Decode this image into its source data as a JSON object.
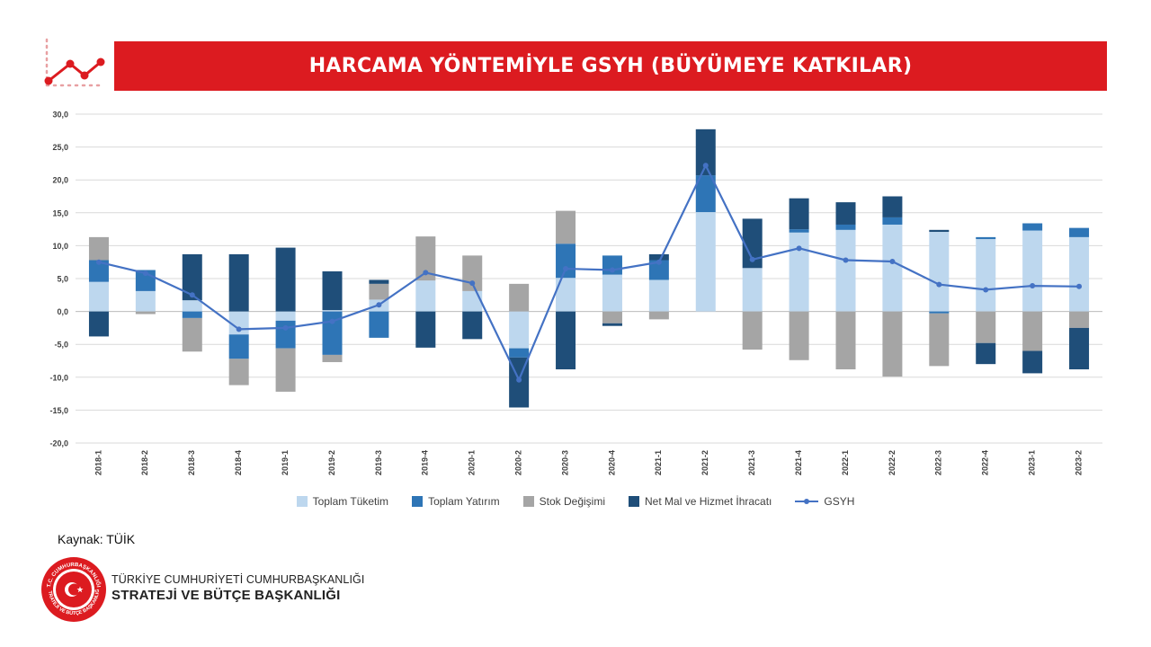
{
  "header": {
    "title": "HARCAMA YÖNTEMİYLE GSYH (BÜYÜMEYE KATKILAR)"
  },
  "colors": {
    "accent_red": "#dc1b20",
    "toplam_tuketim": "#bdd7ee",
    "toplam_yatirim": "#2e75b6",
    "stok_degisimi": "#a5a5a5",
    "net_ihracat": "#1f4e79",
    "gsyh": "#4472c4"
  },
  "chart_data": {
    "type": "bar",
    "stacked": true,
    "title": "",
    "xlabel": "",
    "ylabel": "",
    "ylim": [
      -20,
      30
    ],
    "ytick_step": 5,
    "ytick_labels": [
      "30,0",
      "25,0",
      "20,0",
      "15,0",
      "10,0",
      "5,0",
      "0,0",
      "-5,0",
      "-10,0",
      "-15,0",
      "-20,0"
    ],
    "grid": true,
    "legend_position": "bottom",
    "categories": [
      "2018-1",
      "2018-2",
      "2018-3",
      "2018-4",
      "2019-1",
      "2019-2",
      "2019-3",
      "2019-4",
      "2020-1",
      "2020-2",
      "2020-3",
      "2020-4",
      "2021-1",
      "2021-2",
      "2021-3",
      "2021-4",
      "2022-1",
      "2022-2",
      "2022-3",
      "2022-4",
      "2023-1",
      "2023-2"
    ],
    "series": [
      {
        "name": "Toplam Tüketim",
        "type": "bar",
        "color": "#bdd7ee",
        "values": [
          4.5,
          3.1,
          1.7,
          -3.5,
          -1.4,
          0.2,
          1.8,
          4.7,
          3.1,
          -5.6,
          5.1,
          5.6,
          4.8,
          15.1,
          6.6,
          12.0,
          12.4,
          13.2,
          12.1,
          11.0,
          12.3,
          11.3
        ]
      },
      {
        "name": "Toplam Yatırım",
        "type": "bar",
        "color": "#2e75b6",
        "values": [
          3.3,
          3.2,
          -1.0,
          -3.7,
          -4.2,
          -6.6,
          -4.0,
          0.0,
          0.0,
          -1.4,
          5.2,
          2.9,
          3.0,
          5.6,
          0.0,
          0.5,
          0.8,
          1.1,
          -0.3,
          0.3,
          1.1,
          1.4
        ]
      },
      {
        "name": "Stok Değişimi",
        "type": "bar",
        "color": "#a5a5a5",
        "values": [
          3.5,
          -0.4,
          -5.1,
          -4.0,
          -6.6,
          -1.1,
          2.4,
          6.7,
          5.4,
          4.2,
          5.0,
          -1.8,
          -1.2,
          0.0,
          -5.8,
          -7.4,
          -8.8,
          -9.9,
          -8.0,
          -4.8,
          -6.0,
          -2.5
        ]
      },
      {
        "name": "Net Mal ve Hizmet İhracatı",
        "type": "bar",
        "color": "#1f4e79",
        "values": [
          -3.8,
          0.0,
          7.0,
          8.7,
          9.7,
          5.9,
          0.6,
          -5.5,
          -4.2,
          -7.6,
          -8.8,
          -0.4,
          0.9,
          7.0,
          7.5,
          4.7,
          3.4,
          3.2,
          0.3,
          -3.2,
          -3.4,
          -6.3
        ]
      },
      {
        "name": "GSYH",
        "type": "line",
        "color": "#4472c4",
        "values": [
          7.5,
          5.8,
          2.5,
          -2.7,
          -2.5,
          -1.5,
          1.0,
          5.9,
          4.3,
          -10.4,
          6.5,
          6.3,
          7.5,
          22.2,
          7.9,
          9.6,
          7.8,
          7.6,
          4.1,
          3.3,
          3.9,
          3.8
        ]
      }
    ]
  },
  "footer": {
    "source": "Kaynak: TÜİK",
    "org_line1": "TÜRKİYE CUMHURİYETİ CUMHURBAŞKANLIĞI",
    "org_line2": "STRATEJİ VE BÜTÇE BAŞKANLIĞI",
    "seal_text_top": "T.C. CUMHURBAŞKANLIĞI",
    "seal_text_bottom": "STRATEJİ VE BÜTÇE BAŞKANLIĞI"
  }
}
